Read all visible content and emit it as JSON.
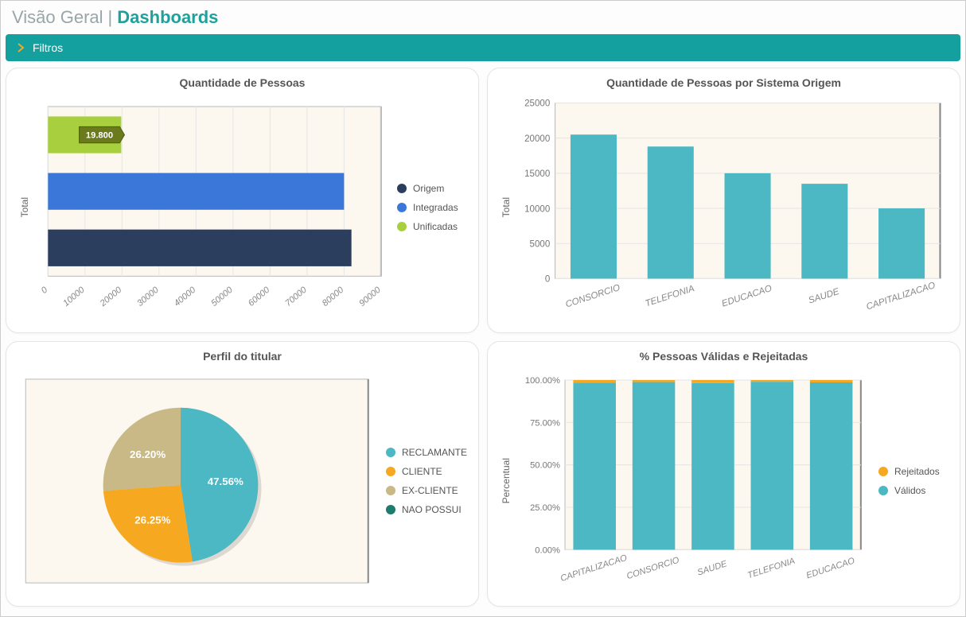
{
  "header": {
    "prefix": "Visão Geral",
    "separator": "|",
    "title": "Dashboards"
  },
  "filters": {
    "label": "Filtros"
  },
  "colors": {
    "teal_bar": "#13a09e",
    "bar_fill": "#4cb8c4",
    "plot_bg": "#fcf8ef",
    "grid": "#e6e6e6",
    "border": "#bbb",
    "border_dark": "#888"
  },
  "chart1": {
    "title": "Quantidade de Pessoas",
    "ylabel": "Total",
    "type": "bar-horizontal",
    "xmin": 0,
    "xmax": 90000,
    "xstep": 10000,
    "bars": [
      {
        "label": "Origem",
        "value": 82000,
        "color": "#2c3e5d"
      },
      {
        "label": "Integradas",
        "value": 80000,
        "color": "#3a77d8"
      },
      {
        "label": "Unificadas",
        "value": 19800,
        "color": "#a8cf3d"
      }
    ],
    "tooltip": {
      "text": "19.800",
      "on": 2
    },
    "legend": [
      {
        "label": "Origem",
        "color": "#2c3e5d"
      },
      {
        "label": "Integradas",
        "color": "#3a77d8"
      },
      {
        "label": "Unificadas",
        "color": "#a8cf3d"
      }
    ]
  },
  "chart2": {
    "title": "Quantidade de Pessoas por Sistema Origem",
    "ylabel": "Total",
    "type": "bar-vertical",
    "ymin": 0,
    "ymax": 25000,
    "ystep": 5000,
    "bars": [
      {
        "label": "CONSORCIO",
        "value": 20500,
        "color": "#4cb8c4"
      },
      {
        "label": "TELEFONIA",
        "value": 18800,
        "color": "#4cb8c4"
      },
      {
        "label": "EDUCACAO",
        "value": 15000,
        "color": "#4cb8c4"
      },
      {
        "label": "SAUDE",
        "value": 13500,
        "color": "#4cb8c4"
      },
      {
        "label": "CAPITALIZACAO",
        "value": 10000,
        "color": "#4cb8c4"
      }
    ]
  },
  "chart3": {
    "title": "Perfil do titular",
    "type": "pie",
    "slices": [
      {
        "label": "RECLAMANTE",
        "pct": 47.56,
        "display": "47.56%",
        "color": "#4cb8c4"
      },
      {
        "label": "CLIENTE",
        "pct": 26.25,
        "display": "26.25%",
        "color": "#f6a821"
      },
      {
        "label": "EX-CLIENTE",
        "pct": 26.2,
        "display": "26.20%",
        "color": "#c9b986"
      },
      {
        "label": "NAO POSSUI",
        "pct": 0.0,
        "display": "",
        "color": "#1e7c6e"
      }
    ],
    "legend": [
      {
        "label": "RECLAMANTE",
        "color": "#4cb8c4"
      },
      {
        "label": "CLIENTE",
        "color": "#f6a821"
      },
      {
        "label": "EX-CLIENTE",
        "color": "#c9b986"
      },
      {
        "label": "NAO POSSUI",
        "color": "#1e7c6e"
      }
    ]
  },
  "chart4": {
    "title": "% Pessoas Válidas e Rejeitadas",
    "ylabel": "Percentual",
    "type": "stacked-bar",
    "ymin": 0,
    "ymax": 100,
    "ystep": 25,
    "yformat": "percent2",
    "categories": [
      "CAPITALIZACAO",
      "CONSORCIO",
      "SAUDE",
      "TELEFONIA",
      "EDUCACAO"
    ],
    "series": [
      {
        "label": "Válidos",
        "color": "#4cb8c4",
        "values": [
          98.5,
          98.8,
          98.2,
          99.0,
          98.6
        ]
      },
      {
        "label": "Rejeitados",
        "color": "#f6a821",
        "values": [
          1.5,
          1.2,
          1.8,
          1.0,
          1.4
        ]
      }
    ],
    "legend": [
      {
        "label": "Rejeitados",
        "color": "#f6a821"
      },
      {
        "label": "Válidos",
        "color": "#4cb8c4"
      }
    ]
  }
}
